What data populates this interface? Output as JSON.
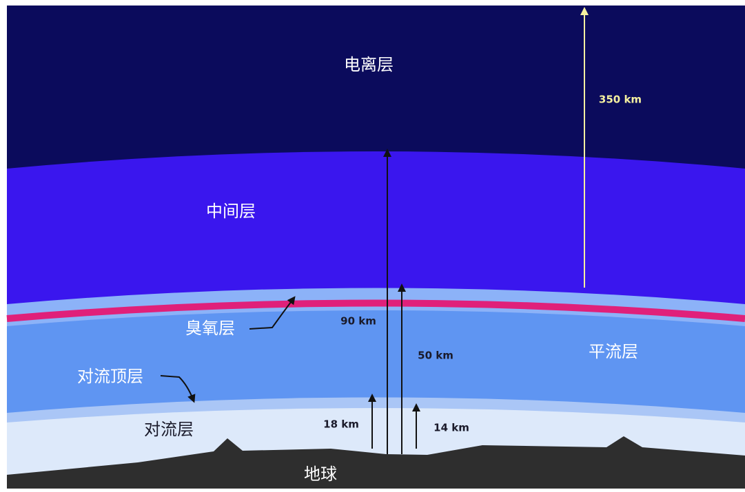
{
  "layers": {
    "ionosphere": "电离层",
    "mesosphere": "中间层",
    "ozone": "臭氧层",
    "stratosphere": "平流层",
    "tropopause": "对流顶层",
    "troposphere": "对流层",
    "earth": "地球"
  },
  "heights": {
    "ionosphere": "350 km",
    "mesosphere": "90 km",
    "stratosphere": "50 km",
    "tropopause_equator": "18 km",
    "tropopause_pole": "14 km"
  }
}
